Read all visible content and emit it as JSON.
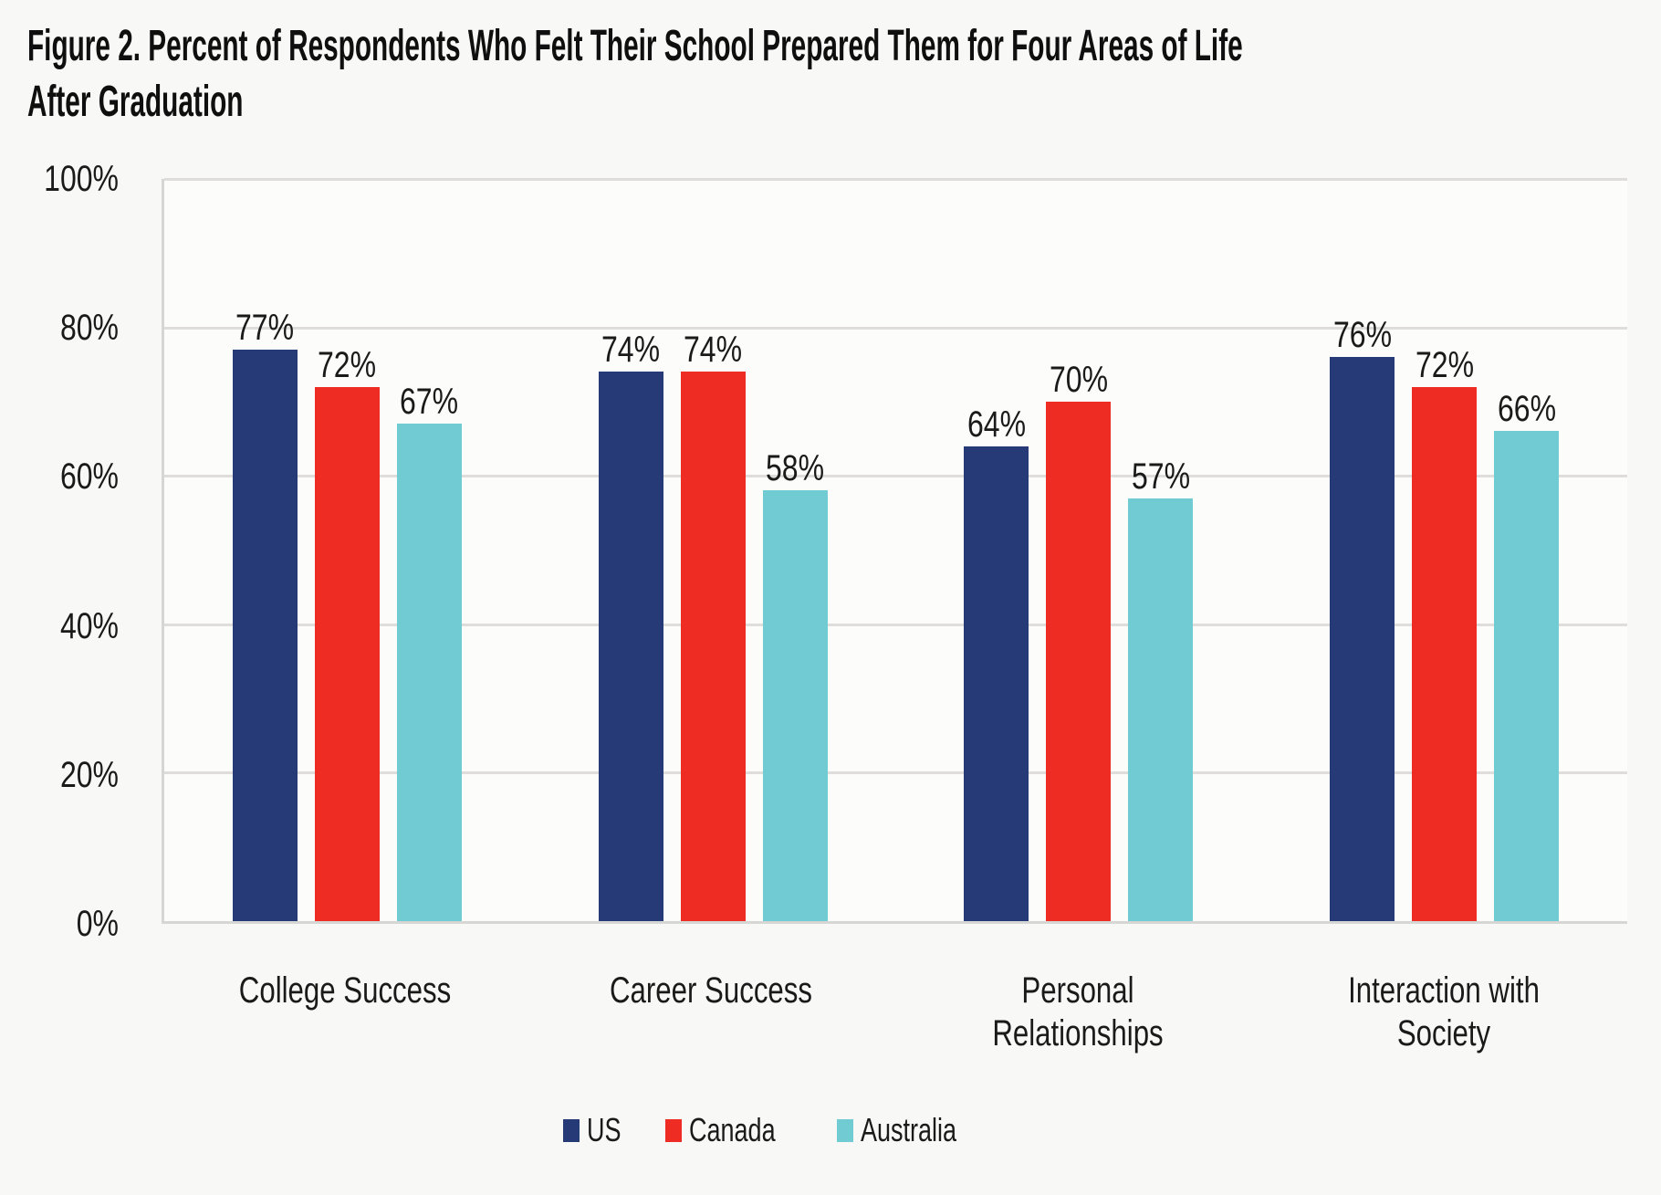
{
  "header": {
    "title_lines": [
      "Figure 2. Percent of Respondents Who Felt Their School Prepared Them for Four Areas of Life",
      "After Graduation"
    ]
  },
  "chart_data": {
    "type": "bar",
    "title": "Figure 2. Percent of Respondents Who Felt Their School Prepared Them for Four Areas of Life After Graduation",
    "categories": [
      "College Success",
      "Career Success",
      "Personal Relationships",
      "Interaction with Society"
    ],
    "series": [
      {
        "name": "US",
        "color": "#253a77",
        "values": [
          77,
          74,
          64,
          76
        ]
      },
      {
        "name": "Canada",
        "color": "#ee2c24",
        "values": [
          72,
          74,
          70,
          72
        ]
      },
      {
        "name": "Australia",
        "color": "#70cbd2",
        "values": [
          67,
          58,
          57,
          66
        ]
      }
    ],
    "value_suffix": "%",
    "xlabel": "",
    "ylabel": "",
    "ylim": [
      0,
      100
    ],
    "y_ticks": [
      "0%",
      "20%",
      "40%",
      "60%",
      "80%",
      "100%"
    ],
    "grid": true,
    "legend_position": "bottom",
    "colors": {
      "page_bg": "#f8f8f6",
      "plot_bg": "#fcfcfb",
      "gridline": "#dedddb",
      "axis_line": "#d6d6d4",
      "text": "#1a1a1a"
    }
  }
}
